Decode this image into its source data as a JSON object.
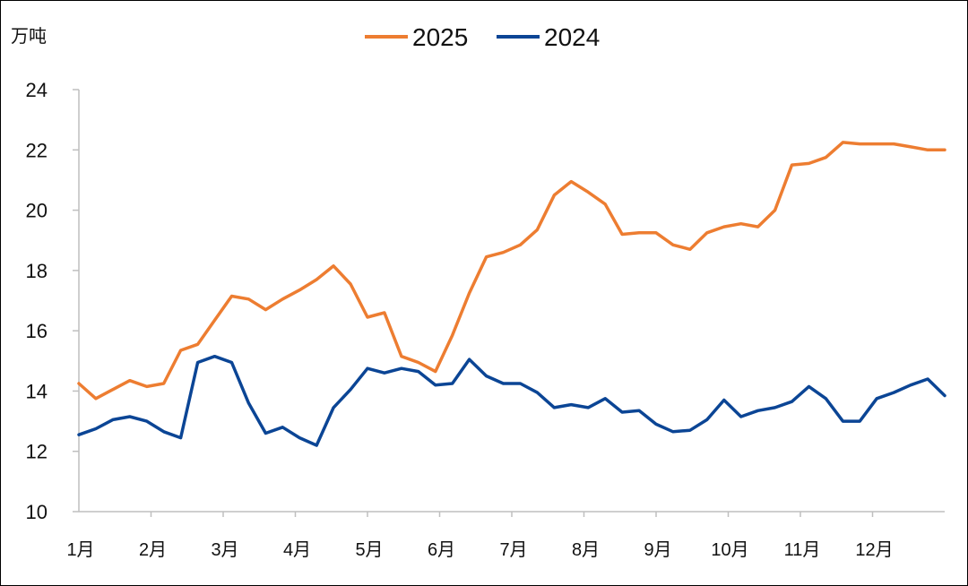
{
  "chart_data": {
    "type": "line",
    "unit_label": "万吨",
    "y_ticks": [
      "24",
      "22",
      "20",
      "18",
      "16",
      "14",
      "12",
      "10"
    ],
    "ylim": [
      10,
      24
    ],
    "y_step": 2,
    "month_labels": [
      "1月",
      "2月",
      "3月",
      "4月",
      "5月",
      "6月",
      "7月",
      "8月",
      "9月",
      "10月",
      "11月",
      "12月"
    ],
    "x_week_count": 52,
    "legend_position": "top-center",
    "series": [
      {
        "name": "2025",
        "color": "#ED7D31",
        "values": [
          14.25,
          13.75,
          14.05,
          14.35,
          14.15,
          14.25,
          15.35,
          15.55,
          16.35,
          17.15,
          17.05,
          16.7,
          17.05,
          17.35,
          17.7,
          18.15,
          17.55,
          16.45,
          16.6,
          15.15,
          14.95,
          14.65,
          15.85,
          17.25,
          18.45,
          18.6,
          18.85,
          19.35,
          20.5,
          20.95,
          20.6,
          20.2,
          19.2,
          19.25,
          19.25,
          18.85,
          18.7,
          19.25,
          19.45,
          19.55,
          19.45,
          20.0,
          21.5,
          21.55,
          21.75,
          22.25,
          22.2,
          22.2,
          22.2,
          22.1,
          22.0,
          22.0
        ]
      },
      {
        "name": "2024",
        "color": "#0B4595",
        "values": [
          12.55,
          12.75,
          13.05,
          13.15,
          13.0,
          12.65,
          12.45,
          14.95,
          15.15,
          14.95,
          13.6,
          12.6,
          12.8,
          12.45,
          12.2,
          13.45,
          14.05,
          14.75,
          14.6,
          14.75,
          14.65,
          14.2,
          14.25,
          15.05,
          14.5,
          14.25,
          14.25,
          13.95,
          13.45,
          13.55,
          13.45,
          13.75,
          13.3,
          13.35,
          12.9,
          12.65,
          12.7,
          13.05,
          13.7,
          13.15,
          13.35,
          13.45,
          13.65,
          14.15,
          13.75,
          13.0,
          13.0,
          13.75,
          13.95,
          14.2,
          14.4,
          13.85
        ]
      }
    ]
  }
}
